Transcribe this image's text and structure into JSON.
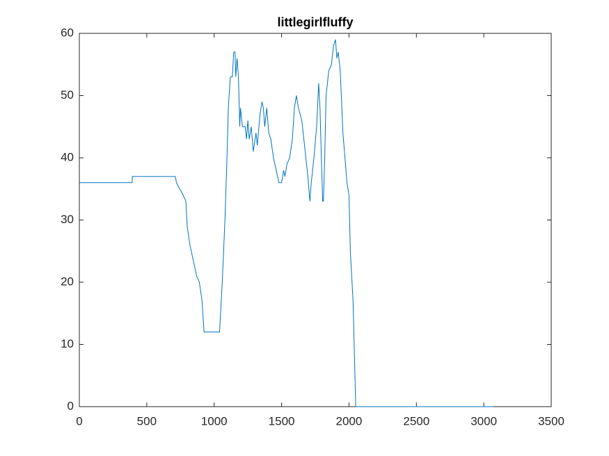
{
  "chart_data": {
    "type": "line",
    "title": "littlegirlfluffy",
    "x": [
      0,
      392,
      393,
      712,
      720,
      745,
      770,
      790,
      800,
      820,
      840,
      870,
      890,
      910,
      925,
      1040,
      1060,
      1080,
      1095,
      1105,
      1120,
      1135,
      1145,
      1155,
      1160,
      1170,
      1180,
      1190,
      1195,
      1210,
      1230,
      1240,
      1250,
      1260,
      1275,
      1290,
      1310,
      1320,
      1340,
      1355,
      1365,
      1375,
      1390,
      1405,
      1420,
      1440,
      1460,
      1480,
      1500,
      1515,
      1525,
      1540,
      1560,
      1580,
      1595,
      1610,
      1625,
      1650,
      1665,
      1680,
      1695,
      1710,
      1720,
      1740,
      1760,
      1775,
      1785,
      1795,
      1805,
      1810,
      1820,
      1830,
      1850,
      1870,
      1885,
      1900,
      1910,
      1920,
      1935,
      1955,
      1970,
      1985,
      2000,
      2010,
      2030,
      2050,
      3070
    ],
    "values": [
      36,
      36,
      37,
      37,
      36,
      35,
      34,
      33,
      29,
      26,
      24,
      21,
      20,
      17,
      12,
      12,
      20,
      30,
      40,
      48,
      53,
      53,
      57,
      57,
      53,
      56,
      53,
      45,
      48,
      45,
      45,
      43,
      46,
      43,
      45,
      41,
      44,
      42,
      47,
      49,
      48,
      45,
      48,
      44,
      43,
      40,
      38,
      36,
      36,
      38,
      37,
      39,
      40,
      43,
      48,
      50,
      48,
      46,
      43,
      40,
      37,
      33,
      36,
      40,
      45,
      52,
      48,
      40,
      33,
      33,
      40,
      50,
      54,
      55,
      58,
      59,
      56,
      57,
      54,
      44,
      40,
      36,
      34,
      25,
      17,
      0,
      0
    ],
    "color": "#0072bd",
    "xlim": [
      0,
      3500
    ],
    "xticks": [
      0,
      500,
      1000,
      1500,
      2000,
      2500,
      3000,
      3500
    ],
    "ylim": [
      0,
      60
    ],
    "yticks": [
      0,
      10,
      20,
      30,
      40,
      50,
      60
    ],
    "grid": false
  }
}
